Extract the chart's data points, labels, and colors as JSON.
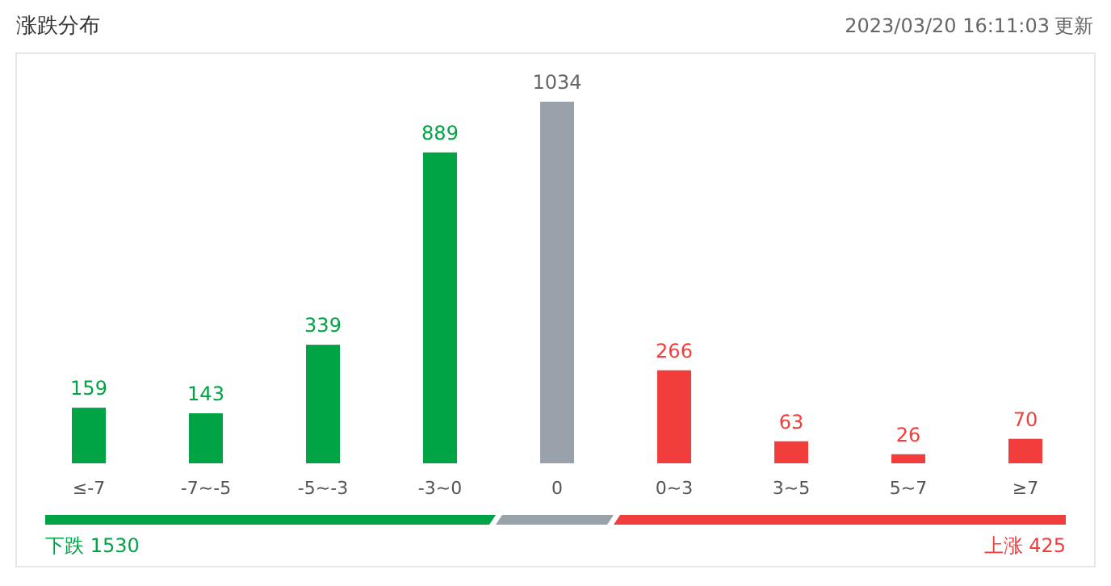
{
  "chart_data": {
    "type": "bar",
    "title": "涨跌分布",
    "categories": [
      "≤-7",
      "-7~-5",
      "-5~-3",
      "-3~0",
      "0",
      "0~3",
      "3~5",
      "5~7",
      "≥7"
    ],
    "values": [
      159,
      143,
      339,
      889,
      1034,
      266,
      63,
      26,
      70
    ],
    "colors": [
      "#00a445",
      "#00a445",
      "#00a445",
      "#00a445",
      "#99a2ab",
      "#f23d3d",
      "#f23d3d",
      "#f23d3d",
      "#f23d3d"
    ],
    "data_labels": true,
    "annotations": [
      "2023/03/20 16:11:03",
      "更新",
      "下跌 1530",
      "上涨 425"
    ]
  }
}
